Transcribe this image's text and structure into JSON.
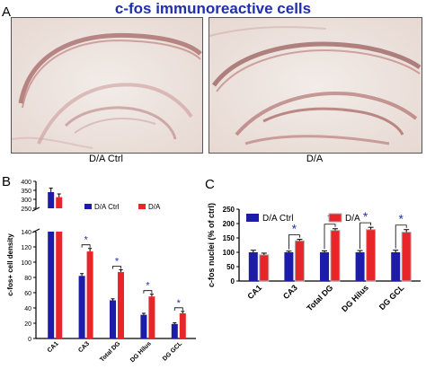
{
  "title": "c-fos immunoreactive cells",
  "panels": {
    "a": {
      "label": "A",
      "left_caption": "D/A Ctrl",
      "right_caption": "D/A"
    },
    "b": {
      "label": "B"
    },
    "c": {
      "label": "C"
    }
  },
  "colors": {
    "ctrl": "#1c1ca8",
    "da": "#e8262a",
    "title": "#1f2fae",
    "star": "#2233aa"
  },
  "chart_data": [
    {
      "type": "bar",
      "panel": "B",
      "categories": [
        "CA1",
        "CA3",
        "Total DG",
        "DG Hilus",
        "DG GCL"
      ],
      "series": [
        {
          "name": "D/A Ctrl",
          "values": [
            340,
            82,
            50,
            31,
            19
          ],
          "errors": [
            22,
            3,
            2,
            2,
            1.5
          ]
        },
        {
          "name": "D/A",
          "values": [
            312,
            114,
            87,
            55,
            33
          ],
          "errors": [
            18,
            4,
            3,
            3,
            2.5
          ]
        }
      ],
      "ylabel": "c-fos+ cell density",
      "ylim_lower": [
        0,
        140
      ],
      "ylim_upper": [
        250,
        400
      ],
      "yticks_lower": [
        "0",
        "20",
        "40",
        "60",
        "80",
        "100",
        "120",
        "140"
      ],
      "yticks_upper": [
        "250",
        "300",
        "350",
        "400"
      ],
      "significance": [
        "",
        "*",
        "*",
        "*",
        "*"
      ],
      "legend": "top-right",
      "broken_axis": true
    },
    {
      "type": "bar",
      "panel": "C",
      "categories": [
        "CA1",
        "CA3",
        "Total DG",
        "DG Hilus",
        "DG GCL"
      ],
      "series": [
        {
          "name": "D/A Ctrl",
          "values": [
            100,
            100,
            100,
            100,
            100
          ],
          "errors": [
            7,
            4,
            5,
            6,
            7
          ]
        },
        {
          "name": "D/A",
          "values": [
            91,
            140,
            176,
            179,
            170
          ],
          "errors": [
            6,
            5,
            6,
            8,
            9
          ]
        }
      ],
      "ylabel": "c-fos nuclei (% of ctrl)",
      "ylim": [
        0,
        250
      ],
      "yticks": [
        "0",
        "50",
        "100",
        "150",
        "200",
        "250"
      ],
      "significance": [
        "",
        "*",
        "*",
        "*",
        "*"
      ],
      "legend": "top"
    }
  ]
}
